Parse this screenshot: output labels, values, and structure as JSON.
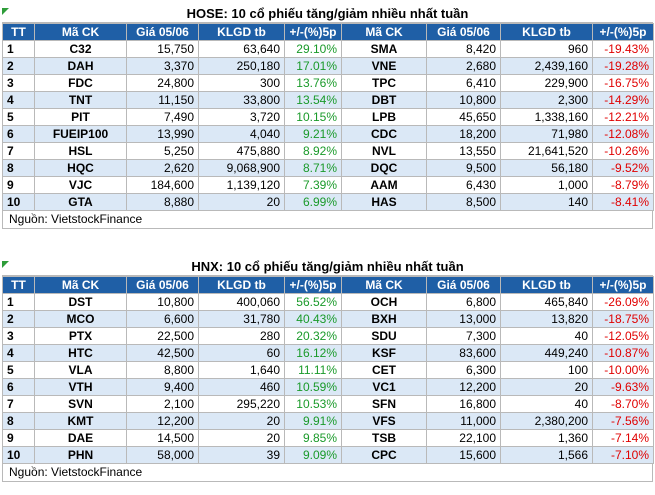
{
  "tables": [
    {
      "title": "HOSE: 10 cổ phiếu tăng/giảm nhiều nhất tuần",
      "headers": [
        "TT",
        "Mã CK",
        "Giá 05/06",
        "KLGD tb",
        "+/-(%)5p",
        "Mã CK",
        "Giá 05/06",
        "KLGD tb",
        "+/-(%)5p"
      ],
      "rows": [
        {
          "tt": "1",
          "up_sym": "C32",
          "up_price": "15,750",
          "up_vol": "63,640",
          "up_pct": "29.10%",
          "down_sym": "SMA",
          "down_price": "8,420",
          "down_vol": "960",
          "down_pct": "-19.43%"
        },
        {
          "tt": "2",
          "up_sym": "DAH",
          "up_price": "3,370",
          "up_vol": "250,180",
          "up_pct": "17.01%",
          "down_sym": "VNE",
          "down_price": "2,680",
          "down_vol": "2,439,160",
          "down_pct": "-19.28%"
        },
        {
          "tt": "3",
          "up_sym": "FDC",
          "up_price": "24,800",
          "up_vol": "300",
          "up_pct": "13.76%",
          "down_sym": "TPC",
          "down_price": "6,410",
          "down_vol": "229,900",
          "down_pct": "-16.75%"
        },
        {
          "tt": "4",
          "up_sym": "TNT",
          "up_price": "11,150",
          "up_vol": "33,800",
          "up_pct": "13.54%",
          "down_sym": "DBT",
          "down_price": "10,800",
          "down_vol": "2,300",
          "down_pct": "-14.29%"
        },
        {
          "tt": "5",
          "up_sym": "PIT",
          "up_price": "7,490",
          "up_vol": "3,720",
          "up_pct": "10.15%",
          "down_sym": "LPB",
          "down_price": "45,650",
          "down_vol": "1,338,160",
          "down_pct": "-12.21%"
        },
        {
          "tt": "6",
          "up_sym": "FUEIP100",
          "up_price": "13,990",
          "up_vol": "4,040",
          "up_pct": "9.21%",
          "down_sym": "CDC",
          "down_price": "18,200",
          "down_vol": "71,980",
          "down_pct": "-12.08%"
        },
        {
          "tt": "7",
          "up_sym": "HSL",
          "up_price": "5,250",
          "up_vol": "475,880",
          "up_pct": "8.92%",
          "down_sym": "NVL",
          "down_price": "13,550",
          "down_vol": "21,641,520",
          "down_pct": "-10.26%"
        },
        {
          "tt": "8",
          "up_sym": "HQC",
          "up_price": "2,620",
          "up_vol": "9,068,900",
          "up_pct": "8.71%",
          "down_sym": "DQC",
          "down_price": "9,500",
          "down_vol": "56,180",
          "down_pct": "-9.52%"
        },
        {
          "tt": "9",
          "up_sym": "VJC",
          "up_price": "184,600",
          "up_vol": "1,139,120",
          "up_pct": "7.39%",
          "down_sym": "AAM",
          "down_price": "6,430",
          "down_vol": "1,000",
          "down_pct": "-8.79%"
        },
        {
          "tt": "10",
          "up_sym": "GTA",
          "up_price": "8,880",
          "up_vol": "20",
          "up_pct": "6.99%",
          "down_sym": "HAS",
          "down_price": "8,500",
          "down_vol": "140",
          "down_pct": "-8.41%"
        }
      ],
      "source": "Nguồn: VietstockFinance"
    },
    {
      "title": "HNX: 10 cổ phiếu tăng/giảm nhiều nhất tuần",
      "headers": [
        "TT",
        "Mã CK",
        "Giá 05/06",
        "KLGD tb",
        "+/-(%)5p",
        "Mã CK",
        "Giá 05/06",
        "KLGD tb",
        "+/-(%)5p"
      ],
      "rows": [
        {
          "tt": "1",
          "up_sym": "DST",
          "up_price": "10,800",
          "up_vol": "400,060",
          "up_pct": "56.52%",
          "down_sym": "OCH",
          "down_price": "6,800",
          "down_vol": "465,840",
          "down_pct": "-26.09%"
        },
        {
          "tt": "2",
          "up_sym": "MCO",
          "up_price": "6,600",
          "up_vol": "31,780",
          "up_pct": "40.43%",
          "down_sym": "BXH",
          "down_price": "13,000",
          "down_vol": "13,820",
          "down_pct": "-18.75%"
        },
        {
          "tt": "3",
          "up_sym": "PTX",
          "up_price": "22,500",
          "up_vol": "280",
          "up_pct": "20.32%",
          "down_sym": "SDU",
          "down_price": "7,300",
          "down_vol": "40",
          "down_pct": "-12.05%"
        },
        {
          "tt": "4",
          "up_sym": "HTC",
          "up_price": "42,500",
          "up_vol": "60",
          "up_pct": "16.12%",
          "down_sym": "KSF",
          "down_price": "83,600",
          "down_vol": "449,240",
          "down_pct": "-10.87%"
        },
        {
          "tt": "5",
          "up_sym": "VLA",
          "up_price": "8,800",
          "up_vol": "1,640",
          "up_pct": "11.11%",
          "down_sym": "CET",
          "down_price": "6,300",
          "down_vol": "100",
          "down_pct": "-10.00%"
        },
        {
          "tt": "6",
          "up_sym": "VTH",
          "up_price": "9,400",
          "up_vol": "460",
          "up_pct": "10.59%",
          "down_sym": "VC1",
          "down_price": "12,200",
          "down_vol": "20",
          "down_pct": "-9.63%"
        },
        {
          "tt": "7",
          "up_sym": "SVN",
          "up_price": "2,100",
          "up_vol": "295,220",
          "up_pct": "10.53%",
          "down_sym": "SFN",
          "down_price": "16,800",
          "down_vol": "40",
          "down_pct": "-8.70%"
        },
        {
          "tt": "8",
          "up_sym": "KMT",
          "up_price": "12,200",
          "up_vol": "20",
          "up_pct": "9.91%",
          "down_sym": "VFS",
          "down_price": "11,000",
          "down_vol": "2,380,200",
          "down_pct": "-7.56%"
        },
        {
          "tt": "9",
          "up_sym": "DAE",
          "up_price": "14,500",
          "up_vol": "20",
          "up_pct": "9.85%",
          "down_sym": "TSB",
          "down_price": "22,100",
          "down_vol": "1,360",
          "down_pct": "-7.14%"
        },
        {
          "tt": "10",
          "up_sym": "PHN",
          "up_price": "58,000",
          "up_vol": "39",
          "up_pct": "9.09%",
          "down_sym": "CPC",
          "down_price": "15,600",
          "down_vol": "1,566",
          "down_pct": "-7.10%"
        }
      ],
      "source": "Nguồn: VietstockFinance"
    }
  ],
  "colors": {
    "header_bg": "#1f5fa6",
    "row_alt_bg": "#dbe8f6",
    "gain": "#1a9a2a",
    "loss": "#e00000",
    "corner_mark": "#2e9d3a"
  }
}
